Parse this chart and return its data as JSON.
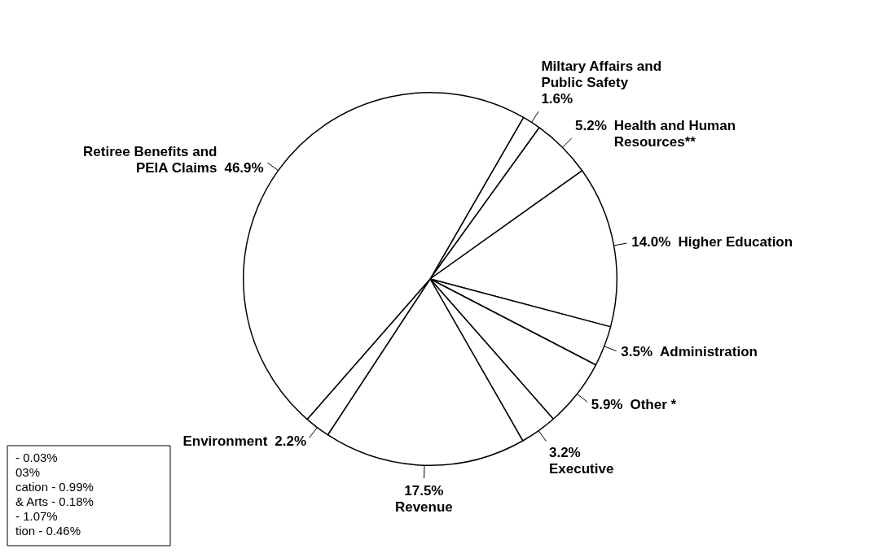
{
  "chart_data": {
    "type": "pie",
    "categories": [
      "Miltary Affairs and Public Safety",
      "Health and Human Resources**",
      "Higher Education",
      "Administration",
      "Other *",
      "Executive",
      "Revenue",
      "Environment",
      "Retiree Benefits and PEIA Claims"
    ],
    "values": [
      1.6,
      5.2,
      14.0,
      3.5,
      5.9,
      3.2,
      17.5,
      2.2,
      46.9
    ],
    "value_labels": [
      "1.6%",
      "5.2%",
      "14.0%",
      "3.5%",
      "5.9%",
      "3.2%",
      "17.5%",
      "2.2%",
      "46.9%"
    ],
    "colors": [
      "#ffffff",
      "#ffffff",
      "#ffffff",
      "#ffffff",
      "#ffffff",
      "#ffffff",
      "#ffffff",
      "#ffffff",
      "#ffffff"
    ],
    "annotations": [
      "- 0.03%",
      "03%",
      "cation - 0.99%",
      "& Arts - 0.18%",
      "- 1.07%",
      "tion - 0.46%"
    ]
  }
}
